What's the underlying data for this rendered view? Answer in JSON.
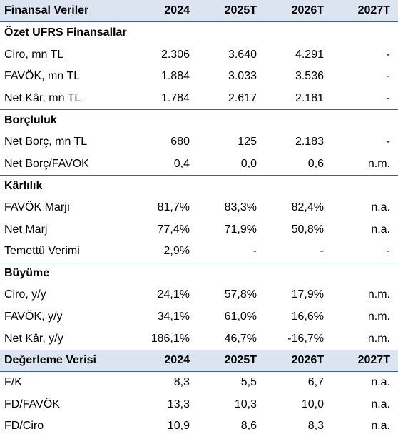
{
  "table": {
    "header": [
      "Finansal Veriler",
      "2024",
      "2025T",
      "2026T",
      "2027T"
    ],
    "sections": [
      {
        "title": "Özet UFRS Finansallar",
        "rows": [
          [
            "Ciro, mn TL",
            "2.306",
            "3.640",
            "4.291",
            "-"
          ],
          [
            "FAVÖK, mn TL",
            "1.884",
            "3.033",
            "3.536",
            "-"
          ],
          [
            "Net Kâr, mn TL",
            "1.784",
            "2.617",
            "2.181",
            "-"
          ]
        ]
      },
      {
        "title": "Borçluluk",
        "rows": [
          [
            "Net Borç, mn TL",
            "680",
            "125",
            "2.183",
            "-"
          ],
          [
            "Net Borç/FAVÖK",
            "0,4",
            "0,0",
            "0,6",
            "n.m."
          ]
        ]
      },
      {
        "title": "Kârlılık",
        "rows": [
          [
            "FAVÖK Marjı",
            "81,7%",
            "83,3%",
            "82,4%",
            "n.a."
          ],
          [
            "Net Marj",
            "77,4%",
            "71,9%",
            "50,8%",
            "n.a."
          ],
          [
            "Temettü Verimi",
            "2,9%",
            "-",
            "-",
            "-"
          ]
        ]
      },
      {
        "title": "Büyüme",
        "rows": [
          [
            "Ciro, y/y",
            "24,1%",
            "57,8%",
            "17,9%",
            "n.m."
          ],
          [
            "FAVÖK, y/y",
            "34,1%",
            "61,0%",
            "16,6%",
            "n.m."
          ],
          [
            "Net Kâr, y/y",
            "186,1%",
            "46,7%",
            "-16,7%",
            "n.m."
          ]
        ]
      }
    ],
    "valuation_header": [
      "Değerleme Verisi",
      "2024",
      "2025T",
      "2026T",
      "2027T"
    ],
    "valuation_rows": [
      [
        "F/K",
        "8,3",
        "5,5",
        "6,7",
        "n.a."
      ],
      [
        "FD/FAVÖK",
        "13,3",
        "10,3",
        "10,0",
        "n.a."
      ],
      [
        "FD/Ciro",
        "10,9",
        "8,6",
        "8,3",
        "n.a."
      ]
    ]
  },
  "colors": {
    "header_bg": "#dbe4f0",
    "rule": "#3f5f8f"
  }
}
